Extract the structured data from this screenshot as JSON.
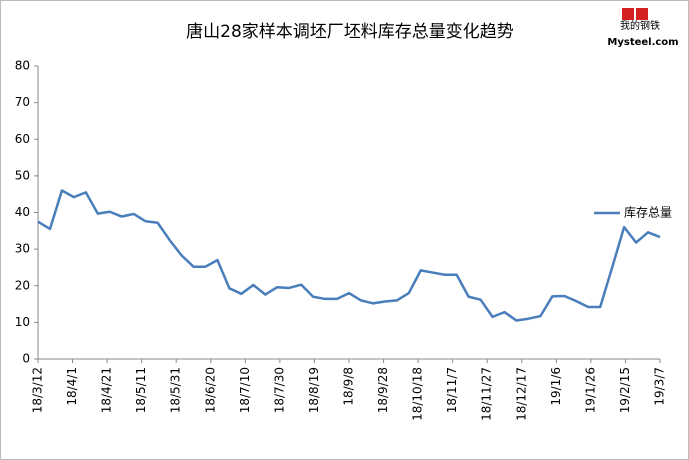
{
  "chart_data": {
    "type": "line",
    "title": "唐山28家样本调坯厂坯料库存总量变化趋势",
    "logo": {
      "brand": "我的钢铁",
      "site": "Mysteel.com"
    },
    "xtick_labels": [
      "18/3/12",
      "18/4/1",
      "18/4/21",
      "18/5/11",
      "18/5/31",
      "18/6/20",
      "18/7/10",
      "18/7/30",
      "18/8/19",
      "18/9/8",
      "18/9/28",
      "18/10/18",
      "18/11/7",
      "18/11/27",
      "18/12/17",
      "19/1/6",
      "19/1/26",
      "19/2/15",
      "19/3/7"
    ],
    "series": [
      {
        "name": "库存总量",
        "color": "#4a7ebb",
        "values": [
          37.5,
          35.5,
          46,
          44.2,
          45.5,
          39.7,
          40.2,
          38.9,
          39.6,
          37.6,
          37.2,
          32.5,
          28.3,
          25.2,
          25.2,
          27,
          19.3,
          17.8,
          20.2,
          17.6,
          19.6,
          19.4,
          20.3,
          17,
          16.4,
          16.4,
          18,
          16,
          15.2,
          15.7,
          16,
          18,
          24.2,
          23.6,
          23,
          23,
          17,
          16.2,
          11.5,
          12.8,
          10.5,
          11,
          11.7,
          17.1,
          17.2,
          15.8,
          14.2,
          14.2,
          25,
          36,
          31.8,
          34.6,
          33.3
        ]
      }
    ],
    "ylim": [
      0,
      80
    ],
    "yticks": [
      0,
      10,
      20,
      30,
      40,
      50,
      60,
      70,
      80
    ],
    "legend": "right"
  }
}
